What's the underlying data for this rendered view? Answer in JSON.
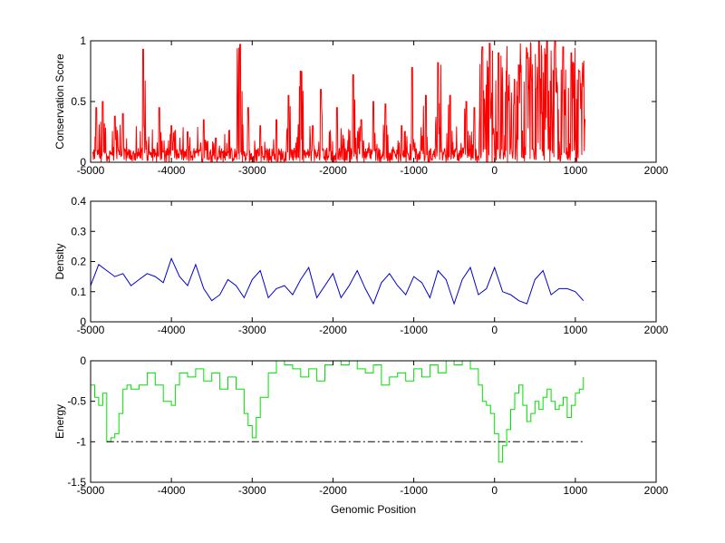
{
  "figure": {
    "background": "#ffffff",
    "axis_color": "#000000"
  },
  "chart_data": [
    {
      "type": "line",
      "ylabel": "Conservation Score",
      "xlabel": "",
      "xlim": [
        -5000,
        2000
      ],
      "ylim": [
        0,
        1
      ],
      "xticks": [
        -5000,
        -4000,
        -3000,
        -2000,
        -1000,
        0,
        1000,
        2000
      ],
      "yticks": [
        0,
        0.5,
        1
      ],
      "ytick_labels": [
        "0",
        "0.5",
        "1"
      ],
      "series": [
        {
          "color": "#ff0000",
          "x_range": [
            -4980,
            1120
          ],
          "description": "spiky conservation profile; peaks ~0.95 at -4350 and -3150, ~0.75 around -2400/-1700/-1000/-800, high dense block 0.6-1.0 between -150 and 1100",
          "peaks": [
            [
              -4930,
              0.45
            ],
            [
              -4850,
              0.5
            ],
            [
              -4700,
              0.38
            ],
            [
              -4600,
              0.4
            ],
            [
              -4350,
              0.93
            ],
            [
              -4150,
              0.45
            ],
            [
              -4000,
              0.3
            ],
            [
              -3800,
              0.25
            ],
            [
              -3600,
              0.35
            ],
            [
              -3450,
              0.2
            ],
            [
              -3150,
              0.97
            ],
            [
              -3050,
              0.45
            ],
            [
              -2900,
              0.3
            ],
            [
              -2700,
              0.35
            ],
            [
              -2550,
              0.55
            ],
            [
              -2400,
              0.75
            ],
            [
              -2250,
              0.3
            ],
            [
              -2150,
              0.6
            ],
            [
              -1950,
              0.45
            ],
            [
              -1750,
              0.72
            ],
            [
              -1650,
              0.35
            ],
            [
              -1500,
              0.5
            ],
            [
              -1350,
              0.48
            ],
            [
              -1150,
              0.3
            ],
            [
              -1020,
              0.78
            ],
            [
              -850,
              0.55
            ],
            [
              -700,
              0.82
            ],
            [
              -550,
              0.55
            ],
            [
              -350,
              0.5
            ],
            [
              -250,
              0.45
            ],
            [
              -150,
              0.95
            ],
            [
              -60,
              0.98
            ],
            [
              50,
              0.9
            ],
            [
              150,
              0.75
            ],
            [
              300,
              0.8
            ],
            [
              450,
              0.7
            ],
            [
              550,
              1.0
            ],
            [
              650,
              1.0
            ],
            [
              750,
              1.0
            ],
            [
              850,
              0.95
            ],
            [
              950,
              0.9
            ],
            [
              1050,
              0.75
            ],
            [
              1100,
              0.62
            ]
          ]
        }
      ]
    },
    {
      "type": "line",
      "ylabel": "Density",
      "xlabel": "",
      "xlim": [
        -5000,
        2000
      ],
      "ylim": [
        0,
        0.4
      ],
      "xticks": [
        -5000,
        -4000,
        -3000,
        -2000,
        -1000,
        0,
        1000,
        2000
      ],
      "yticks": [
        0,
        0.1,
        0.2,
        0.3,
        0.4
      ],
      "ytick_labels": [
        "0",
        "0.1",
        "0.2",
        "0.3",
        "0.4"
      ],
      "series": [
        {
          "color": "#0000cc",
          "x": [
            -5000,
            -4900,
            -4800,
            -4700,
            -4600,
            -4500,
            -4400,
            -4300,
            -4200,
            -4100,
            -4000,
            -3900,
            -3800,
            -3700,
            -3600,
            -3500,
            -3400,
            -3300,
            -3200,
            -3100,
            -3000,
            -2900,
            -2800,
            -2700,
            -2600,
            -2500,
            -2400,
            -2300,
            -2200,
            -2100,
            -2000,
            -1900,
            -1800,
            -1700,
            -1600,
            -1500,
            -1400,
            -1300,
            -1200,
            -1100,
            -1000,
            -900,
            -800,
            -700,
            -600,
            -500,
            -400,
            -300,
            -200,
            -100,
            0,
            100,
            200,
            300,
            400,
            500,
            600,
            700,
            800,
            900,
            1000,
            1100
          ],
          "y": [
            0.12,
            0.19,
            0.17,
            0.15,
            0.16,
            0.12,
            0.14,
            0.16,
            0.15,
            0.13,
            0.21,
            0.15,
            0.12,
            0.19,
            0.11,
            0.07,
            0.09,
            0.14,
            0.12,
            0.08,
            0.14,
            0.17,
            0.08,
            0.11,
            0.12,
            0.09,
            0.14,
            0.18,
            0.08,
            0.12,
            0.16,
            0.08,
            0.12,
            0.17,
            0.11,
            0.06,
            0.13,
            0.16,
            0.12,
            0.09,
            0.15,
            0.13,
            0.08,
            0.17,
            0.14,
            0.06,
            0.14,
            0.18,
            0.09,
            0.11,
            0.18,
            0.1,
            0.09,
            0.07,
            0.06,
            0.14,
            0.17,
            0.09,
            0.11,
            0.11,
            0.1,
            0.07
          ]
        }
      ]
    },
    {
      "type": "line",
      "ylabel": "Energy",
      "xlabel": "Genomic Position",
      "xlim": [
        -5000,
        2000
      ],
      "ylim": [
        -1.5,
        0
      ],
      "xticks": [
        -5000,
        -4000,
        -3000,
        -2000,
        -1000,
        0,
        1000,
        2000
      ],
      "yticks": [
        0,
        -0.5,
        -1,
        -1.5
      ],
      "ytick_labels": [
        "0",
        "-0.5",
        "-1",
        "-1.5"
      ],
      "series": [
        {
          "color": "#00e000",
          "style": "step",
          "x": [
            -5000,
            -4950,
            -4900,
            -4850,
            -4800,
            -4750,
            -4700,
            -4650,
            -4600,
            -4550,
            -4500,
            -4400,
            -4300,
            -4200,
            -4100,
            -4000,
            -3950,
            -3900,
            -3800,
            -3700,
            -3600,
            -3500,
            -3400,
            -3300,
            -3200,
            -3100,
            -3050,
            -3000,
            -2950,
            -2900,
            -2800,
            -2700,
            -2600,
            -2500,
            -2400,
            -2300,
            -2200,
            -2100,
            -2000,
            -1900,
            -1800,
            -1700,
            -1600,
            -1500,
            -1400,
            -1300,
            -1200,
            -1100,
            -1000,
            -900,
            -800,
            -700,
            -600,
            -500,
            -400,
            -300,
            -200,
            -150,
            -100,
            -50,
            0,
            50,
            100,
            150,
            200,
            250,
            300,
            350,
            400,
            450,
            500,
            550,
            600,
            650,
            700,
            750,
            800,
            850,
            900,
            950,
            1000,
            1050,
            1100
          ],
          "y": [
            -0.3,
            -0.45,
            -0.55,
            -0.4,
            -1.0,
            -0.95,
            -0.9,
            -0.65,
            -0.35,
            -0.3,
            -0.35,
            -0.3,
            -0.15,
            -0.3,
            -0.5,
            -0.55,
            -0.3,
            -0.15,
            -0.2,
            -0.1,
            -0.25,
            -0.15,
            -0.35,
            -0.2,
            -0.35,
            -0.65,
            -0.8,
            -0.95,
            -0.7,
            -0.45,
            -0.15,
            0.0,
            -0.05,
            -0.1,
            -0.2,
            -0.1,
            -0.25,
            -0.05,
            0.0,
            -0.05,
            0.0,
            -0.1,
            -0.15,
            -0.05,
            -0.3,
            -0.2,
            -0.15,
            -0.25,
            -0.1,
            -0.2,
            -0.05,
            -0.15,
            0.0,
            -0.05,
            0.0,
            -0.1,
            -0.3,
            -0.5,
            -0.55,
            -0.65,
            -0.9,
            -1.25,
            -1.05,
            -0.85,
            -0.6,
            -0.4,
            -0.3,
            -0.55,
            -0.75,
            -0.65,
            -0.5,
            -0.6,
            -0.45,
            -0.35,
            -0.5,
            -0.6,
            -0.55,
            -0.45,
            -0.7,
            -0.55,
            -0.4,
            -0.35,
            -0.2
          ]
        },
        {
          "color": "#000000",
          "style": "dashdot",
          "x": [
            -4800,
            1100
          ],
          "y": [
            -1,
            -1
          ]
        }
      ]
    }
  ]
}
